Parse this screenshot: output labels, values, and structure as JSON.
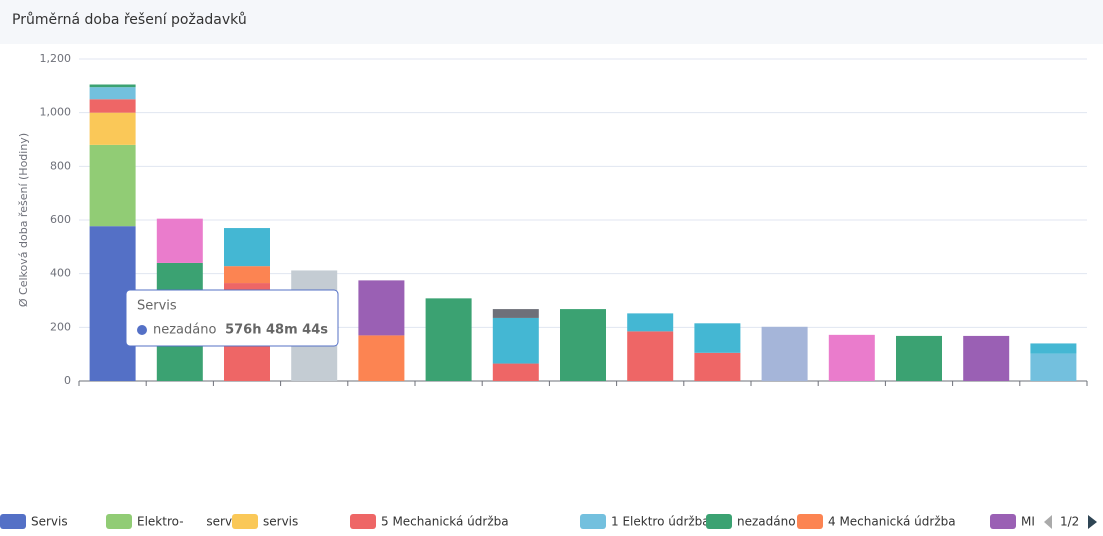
{
  "chart_data": {
    "type": "stacked_bar",
    "title": "Průměrná doba řešení požadavků",
    "y_label": "Ø Celková doba řešení (Hodiny)",
    "categories": [
      null,
      null,
      null,
      null,
      null,
      null,
      null,
      null,
      null,
      null,
      null,
      null,
      null,
      null,
      null
    ],
    "ylim": [
      0,
      1200
    ],
    "yticks": [
      0,
      200,
      400,
      600,
      800,
      {
        "value": 1000,
        "label": "1,000"
      },
      {
        "value": 1200,
        "label": "1,200"
      }
    ],
    "grid": true,
    "series": [
      {
        "name": "Servis",
        "color": "#5470c6",
        "values": [
          577,
          null,
          null,
          null,
          null,
          null,
          null,
          null,
          null,
          null,
          null,
          null,
          null,
          null,
          null
        ]
      },
      {
        "name": "Elektro-      servis",
        "color": "#91cc75",
        "values": [
          303,
          null,
          null,
          null,
          null,
          null,
          null,
          null,
          null,
          null,
          null,
          null,
          null,
          null,
          null
        ]
      },
      {
        "name": "servis",
        "color": "#fac858",
        "values": [
          120,
          null,
          null,
          null,
          null,
          null,
          null,
          null,
          null,
          null,
          null,
          null,
          null,
          null,
          null
        ]
      },
      {
        "name": "5 Mechanická údržba",
        "color": "#ee6666",
        "values": [
          50,
          null,
          365,
          null,
          null,
          null,
          65,
          null,
          185,
          105,
          null,
          null,
          null,
          null,
          null
        ]
      },
      {
        "name": "1 Elektro údržba",
        "color": "#73c0de",
        "values": [
          45,
          null,
          null,
          null,
          null,
          null,
          null,
          null,
          null,
          null,
          null,
          null,
          null,
          null,
          102
        ]
      },
      {
        "name": "nezadáno",
        "color": "#3ba272",
        "values": [
          10,
          440,
          null,
          null,
          null,
          308,
          null,
          268,
          null,
          null,
          null,
          null,
          168,
          null,
          null
        ]
      },
      {
        "name": "4 Mechanická údržba",
        "color": "#fc8452",
        "values": [
          null,
          null,
          63,
          null,
          170,
          null,
          null,
          null,
          null,
          null,
          null,
          null,
          null,
          null,
          null
        ]
      },
      {
        "name": "MI",
        "color": "#9a60b4",
        "values": [
          null,
          null,
          null,
          null,
          205,
          null,
          null,
          null,
          null,
          null,
          null,
          null,
          null,
          168,
          null
        ]
      },
      {
        "name": null,
        "color": "#ea7ccc",
        "values": [
          null,
          165,
          null,
          null,
          null,
          null,
          null,
          null,
          null,
          null,
          null,
          172,
          null,
          null,
          null
        ]
      },
      {
        "name": null,
        "color": "#44b7d3",
        "values": [
          null,
          null,
          142,
          null,
          null,
          null,
          170,
          null,
          67,
          110,
          null,
          null,
          null,
          null,
          38
        ]
      },
      {
        "name": null,
        "color": "#c4ccd3",
        "values": [
          null,
          null,
          null,
          412,
          null,
          null,
          null,
          null,
          null,
          null,
          null,
          null,
          null,
          null,
          null
        ]
      },
      {
        "name": null,
        "color": "#6e7079",
        "values": [
          null,
          null,
          null,
          null,
          null,
          null,
          33,
          null,
          null,
          null,
          null,
          null,
          null,
          null,
          null
        ]
      },
      {
        "name": null,
        "color": "#a5b5d9",
        "values": [
          null,
          null,
          null,
          null,
          null,
          null,
          null,
          null,
          null,
          null,
          202,
          null,
          null,
          null,
          null
        ]
      }
    ],
    "legend_page": "1/2",
    "tooltip": {
      "title": "Servis",
      "series": "nezadáno",
      "value": "576h 48m 44s"
    }
  }
}
